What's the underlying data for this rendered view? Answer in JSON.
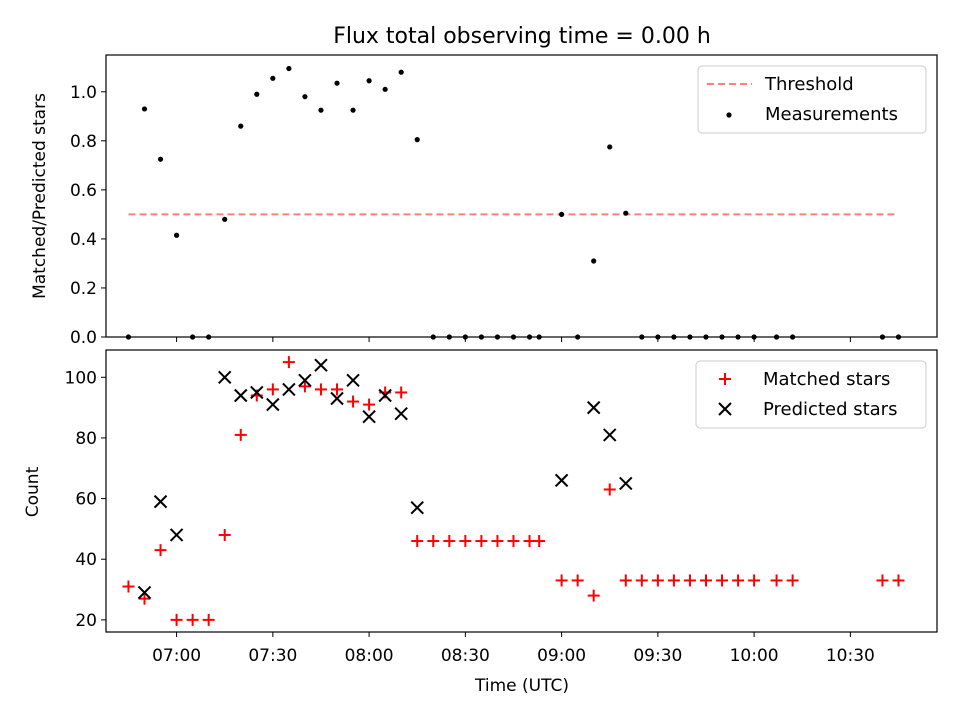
{
  "chart_data": [
    {
      "type": "scatter",
      "title": "Flux total observing time = 0.00 h",
      "ylabel": "Matched/Predicted stars",
      "xlabel": "",
      "xlim": [
        "06:38",
        "10:57"
      ],
      "ylim": [
        0,
        1.15
      ],
      "yticks": [
        0.0,
        0.2,
        0.4,
        0.6,
        0.8,
        1.0
      ],
      "ytick_labels": [
        "0.0",
        "0.2",
        "0.4",
        "0.6",
        "0.8",
        "1.0"
      ],
      "legend": {
        "position": "top-right",
        "entries": [
          "Threshold",
          "Measurements"
        ]
      },
      "series": [
        {
          "name": "Threshold",
          "style": "dashed-line",
          "color": "#ff7f7f",
          "x": [
            "06:45",
            "10:45"
          ],
          "y": [
            0.5,
            0.5
          ]
        },
        {
          "name": "Measurements",
          "style": "dot",
          "color": "#000000",
          "x": [
            "06:45",
            "06:50",
            "06:55",
            "07:00",
            "07:05",
            "07:10",
            "07:15",
            "07:20",
            "07:25",
            "07:30",
            "07:35",
            "07:40",
            "07:45",
            "07:50",
            "07:55",
            "08:00",
            "08:05",
            "08:10",
            "08:15",
            "08:20",
            "08:25",
            "08:30",
            "08:35",
            "08:40",
            "08:45",
            "08:50",
            "08:53",
            "09:00",
            "09:05",
            "09:10",
            "09:15",
            "09:20",
            "09:25",
            "09:30",
            "09:35",
            "09:40",
            "09:45",
            "09:50",
            "09:55",
            "10:00",
            "10:07",
            "10:12",
            "10:40",
            "10:45"
          ],
          "y": [
            0.0,
            0.93,
            0.725,
            0.415,
            0.0,
            0.0,
            0.48,
            0.86,
            0.99,
            1.055,
            1.095,
            0.98,
            0.925,
            1.035,
            0.925,
            1.045,
            1.01,
            1.08,
            0.805,
            0.0,
            0.0,
            0.0,
            0.0,
            0.0,
            0.0,
            0.0,
            0.0,
            0.5,
            0.0,
            0.31,
            0.775,
            0.505,
            0.0,
            0.0,
            0.0,
            0.0,
            0.0,
            0.0,
            0.0,
            0.0,
            0.0,
            0.0,
            0.0,
            0.0
          ]
        }
      ]
    },
    {
      "type": "scatter",
      "title": "",
      "ylabel": "Count",
      "xlabel": "Time (UTC)",
      "xlim": [
        "06:38",
        "10:57"
      ],
      "ylim": [
        16,
        109
      ],
      "yticks": [
        20,
        40,
        60,
        80,
        100
      ],
      "ytick_labels": [
        "20",
        "40",
        "60",
        "80",
        "100"
      ],
      "xticks": [
        "07:00",
        "07:30",
        "08:00",
        "08:30",
        "09:00",
        "09:30",
        "10:00",
        "10:30"
      ],
      "xtick_labels": [
        "07:00",
        "07:30",
        "08:00",
        "08:30",
        "09:00",
        "09:30",
        "10:00",
        "10:30"
      ],
      "legend": {
        "position": "top-right",
        "entries": [
          "Matched stars",
          "Predicted stars"
        ]
      },
      "series": [
        {
          "name": "Matched stars",
          "style": "plus",
          "color": "#ff0000",
          "x": [
            "06:45",
            "06:50",
            "06:55",
            "07:00",
            "07:05",
            "07:10",
            "07:15",
            "07:20",
            "07:25",
            "07:30",
            "07:35",
            "07:40",
            "07:45",
            "07:50",
            "07:55",
            "08:00",
            "08:05",
            "08:10",
            "08:15",
            "08:20",
            "08:25",
            "08:30",
            "08:35",
            "08:40",
            "08:45",
            "08:50",
            "08:53",
            "09:00",
            "09:05",
            "09:10",
            "09:15",
            "09:20",
            "09:25",
            "09:30",
            "09:35",
            "09:40",
            "09:45",
            "09:50",
            "09:55",
            "10:00",
            "10:07",
            "10:12",
            "10:40",
            "10:45"
          ],
          "y": [
            31,
            27,
            43,
            20,
            20,
            20,
            48,
            81,
            94,
            96,
            105,
            97,
            96,
            96,
            92,
            91,
            95,
            95,
            46,
            46,
            46,
            46,
            46,
            46,
            46,
            46,
            46,
            33,
            33,
            28,
            63,
            33,
            33,
            33,
            33,
            33,
            33,
            33,
            33,
            33,
            33,
            33,
            33,
            33
          ]
        },
        {
          "name": "Predicted stars",
          "style": "x",
          "color": "#000000",
          "x": [
            "06:50",
            "06:55",
            "07:00",
            "07:15",
            "07:20",
            "07:25",
            "07:30",
            "07:35",
            "07:40",
            "07:45",
            "07:50",
            "07:55",
            "08:00",
            "08:05",
            "08:10",
            "08:15",
            "09:00",
            "09:10",
            "09:15",
            "09:20"
          ],
          "y": [
            29,
            59,
            48,
            100,
            94,
            95,
            91,
            96,
            99,
            104,
            93,
            99,
            87,
            94,
            88,
            57,
            66,
            90,
            81,
            65
          ]
        }
      ]
    }
  ]
}
